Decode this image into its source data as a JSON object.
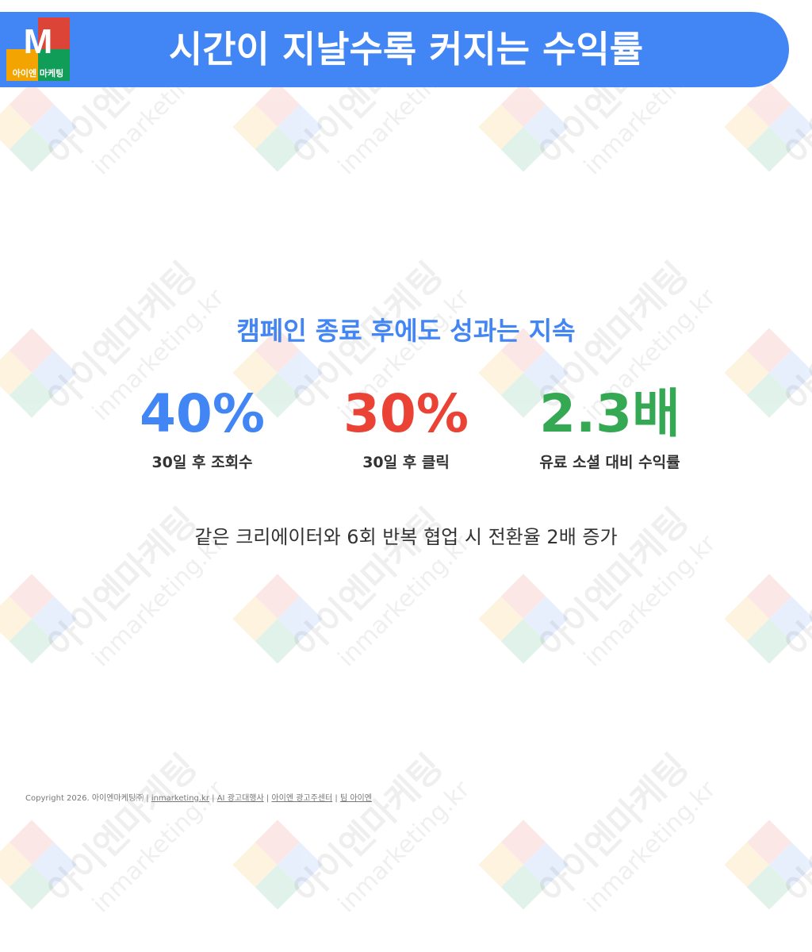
{
  "header": {
    "title": "시간이 지날수록 커지는 수익률",
    "logo_letter": "M",
    "logo_text": "아이엔 마케팅"
  },
  "watermark": {
    "line1": "아이엔마케팅",
    "line2": "inmarketing.kr"
  },
  "main": {
    "subtitle": "캠페인 종료 후에도 성과는 지속",
    "stats": [
      {
        "value": "40%",
        "label": "30일 후 조회수",
        "color": "#4285f4"
      },
      {
        "value": "30%",
        "label": "30일 후 클릭",
        "color": "#ea4335"
      },
      {
        "value": "2.3배",
        "label": "유료 소셜 대비 수익률",
        "color": "#34a853"
      }
    ],
    "note": "같은 크리에이터와 6회 반복 협업 시 전환율 2배 증가"
  },
  "footer": {
    "copyright": "Copyright 2026. 아이엔마케팅㈜",
    "links": [
      "inmarketing.kr",
      "AI 광고대행사",
      "아이엔 광고주센터",
      "팀 아이엔"
    ],
    "separator": "|"
  },
  "colors": {
    "blue": "#4285f4",
    "red": "#ea4335",
    "green": "#34a853",
    "orange": "#fbbc05"
  }
}
